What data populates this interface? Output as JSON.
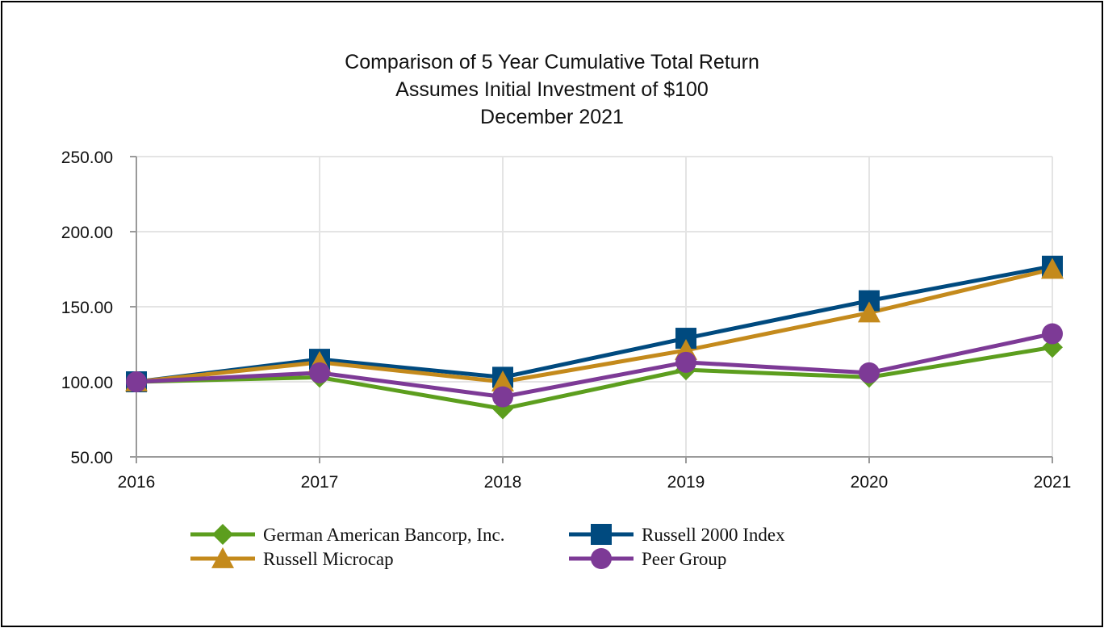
{
  "chart_data": {
    "type": "line",
    "title": [
      "Comparison of 5 Year Cumulative Total Return",
      "Assumes Initial Investment of $100",
      "December 2021"
    ],
    "xlabel": "",
    "ylabel": "",
    "x": [
      "2016",
      "2017",
      "2018",
      "2019",
      "2020",
      "2021"
    ],
    "ylim": [
      50,
      250
    ],
    "yticks": [
      "50.00",
      "100.00",
      "150.00",
      "200.00",
      "250.00"
    ],
    "grid": true,
    "legend_position": "bottom",
    "series": [
      {
        "name": "German American Bancorp, Inc.",
        "values": [
          100,
          103,
          82,
          108,
          103,
          123
        ],
        "color": "#5c9e1e",
        "marker": "diamond"
      },
      {
        "name": "Russell 2000 Index",
        "values": [
          100,
          115,
          103,
          129,
          154,
          177
        ],
        "color": "#004a7f",
        "marker": "square"
      },
      {
        "name": "Russell Microcap",
        "values": [
          100,
          113,
          100,
          121,
          146,
          175
        ],
        "color": "#c48a1c",
        "marker": "triangle"
      },
      {
        "name": "Peer Group",
        "values": [
          100,
          106,
          90,
          113,
          106,
          132
        ],
        "color": "#7d3a96",
        "marker": "circle"
      }
    ]
  }
}
